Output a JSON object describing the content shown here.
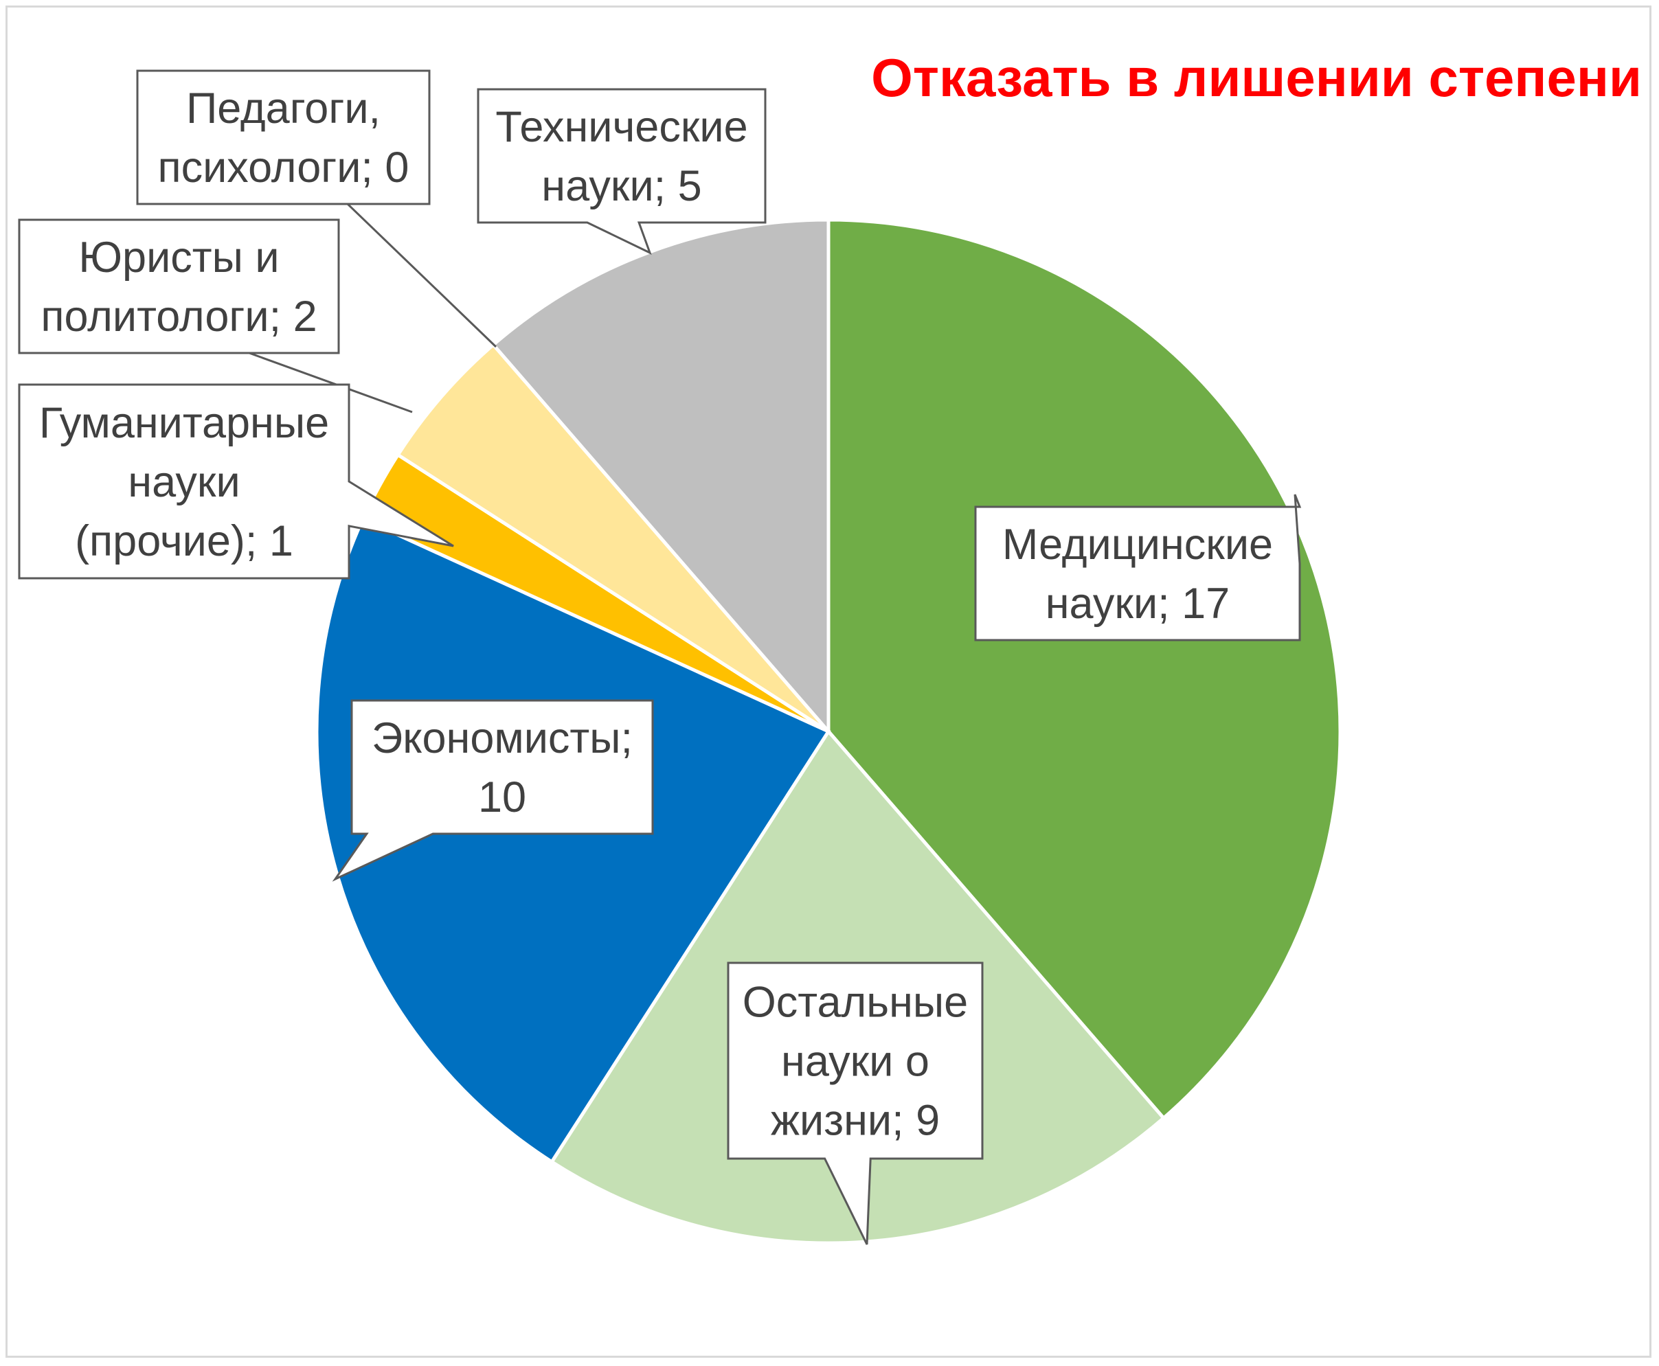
{
  "chart_data": {
    "type": "pie",
    "title": "Отказать в лишении степени",
    "slices": [
      {
        "name": "Медицинские науки",
        "value": 17,
        "color": "#70ad47",
        "label": [
          "Медицинские",
          "науки; 17"
        ]
      },
      {
        "name": "Остальные науки о жизни",
        "value": 9,
        "color": "#c5e0b4",
        "label": [
          "Остальные",
          "науки о",
          "жизни; 9"
        ]
      },
      {
        "name": "Экономисты",
        "value": 10,
        "color": "#0070c0",
        "label": [
          "Экономисты;",
          "10"
        ]
      },
      {
        "name": "Гуманитарные науки (прочие)",
        "value": 1,
        "color": "#ffc000",
        "label": [
          "Гуманитарные",
          "науки",
          "(прочие); 1"
        ]
      },
      {
        "name": "Юристы и политологи",
        "value": 2,
        "color": "#ffe699",
        "label": [
          "Юристы и",
          "политологи; 2"
        ]
      },
      {
        "name": "Педагоги, психологи",
        "value": 0,
        "color": "#7f7f7f",
        "label": [
          "Педагоги,",
          "психологи; 0"
        ]
      },
      {
        "name": "Технические науки",
        "value": 5,
        "color": "#bfbfbf",
        "label": [
          "Технические",
          "науки; 5"
        ]
      }
    ],
    "start_angle_deg": 0,
    "direction": "clockwise",
    "legend": "none",
    "data_labels": "callouts"
  }
}
